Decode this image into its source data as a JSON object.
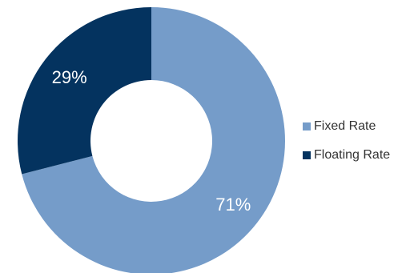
{
  "chart_data": {
    "type": "pie",
    "donut": true,
    "slices": [
      {
        "label": "Fixed Rate",
        "value": 71,
        "display": "71%",
        "color": "#759cc9"
      },
      {
        "label": "Floating Rate",
        "value": 29,
        "display": "29%",
        "color": "#04335f"
      }
    ],
    "legend_position": "right",
    "title": ""
  }
}
